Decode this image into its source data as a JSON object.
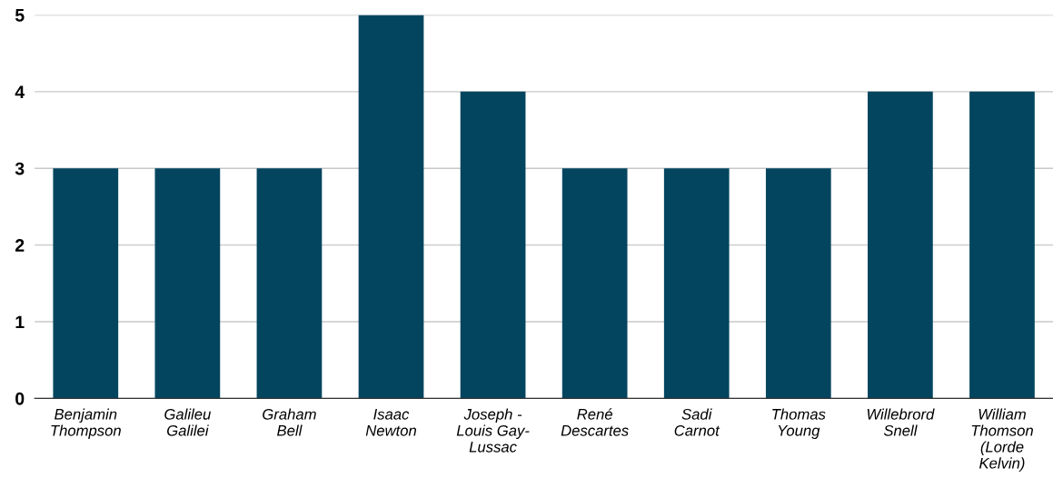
{
  "chart_data": {
    "type": "bar",
    "categories": [
      "Benjamin\nThompson",
      "Galileu\nGalilei",
      "Graham\nBell",
      "Isaac\nNewton",
      "Joseph -\nLouis Gay-\nLussac",
      "René\nDescartes",
      "Sadi\nCarnot",
      "Thomas\nYoung",
      "Willebrord\nSnell",
      "William\nThomson\n(Lorde\nKelvin)"
    ],
    "values": [
      3,
      3,
      3,
      5,
      4,
      3,
      3,
      3,
      4,
      4
    ],
    "color": "#03455f",
    "ylim": [
      0,
      5
    ],
    "yticks": [
      0,
      1,
      2,
      3,
      4,
      5
    ],
    "grid": "y",
    "legend": false
  }
}
